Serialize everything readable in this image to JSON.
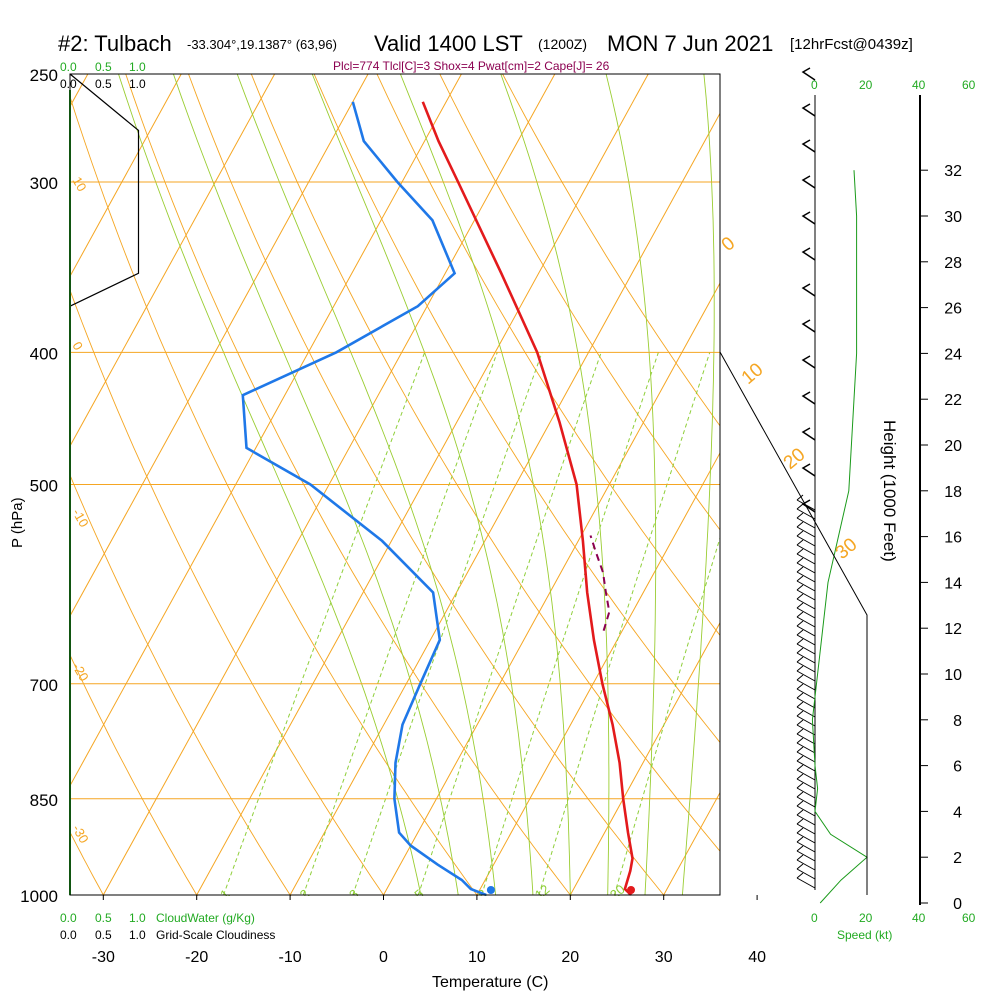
{
  "header": {
    "title_main": "#2: Tulbach",
    "coords": "-33.304°,19.1387° (63,96)",
    "valid": "Valid 1400 LST",
    "zulu": "(1200Z)",
    "date": "MON 7 Jun 2021",
    "forecast": "[12hrFcst@0439z]",
    "indices": "Plcl=774 Tlcl[C]=3 Shox=4 Pwat[cm]=2 Cape[J]= 26"
  },
  "colors": {
    "isotherm": "#f5a623",
    "dry_adiabat": "#e8b800",
    "moist_adiabat": "#9acd32",
    "mixing_ratio": "#8fcf3a",
    "temperature": "#e31a1c",
    "dewpoint": "#1f78e8",
    "parcel": "#8b0050",
    "green_label": "#22aa22",
    "cloud_line": "#000000",
    "height_line": "#1a9a1a"
  },
  "labels": {
    "xlabel": "Temperature (C)",
    "ylabel": "P (hPa)",
    "height_label": "Height (1000 Feet)",
    "cloudwater_label": "CloudWater (g/Kg)",
    "cloudiness_label": "Grid-Scale Cloudiness",
    "speed_label": "Speed (kt)",
    "top_scale_green": [
      "0.0",
      "0.5",
      "1.0"
    ],
    "top_scale_black": [
      "0.0",
      "0.5",
      "1.0"
    ],
    "bottom_scale_green": [
      "0.0",
      "0.5",
      "1.0"
    ],
    "bottom_scale_black": [
      "0.0",
      "0.5",
      "1.0"
    ],
    "speed_ticks": [
      "0",
      "20",
      "40",
      "60"
    ]
  },
  "chart_data": {
    "type": "line",
    "title": "#2: Tulbach",
    "xlabel": "Temperature (C)",
    "ylabel": "P (hPa)",
    "xlim": [
      -34,
      36
    ],
    "plim": [
      1000,
      250
    ],
    "log_pressure": true,
    "x_ticks": [
      -30,
      -20,
      -10,
      0,
      10,
      20,
      30,
      40
    ],
    "p_ticks": [
      250,
      300,
      400,
      500,
      700,
      850,
      1000
    ],
    "isobar_lines": [
      300,
      400,
      500,
      700,
      850
    ],
    "dry_adiabat_labels": [
      "10",
      "0",
      "-10",
      "-20",
      "-30"
    ],
    "skew_labels_right": [
      "0",
      "10",
      "20",
      "30"
    ],
    "mixing_ratio_labels": [
      "1",
      "2",
      "3",
      "5",
      "8",
      "12",
      "20"
    ],
    "height_ticks": [
      0,
      2,
      4,
      6,
      8,
      10,
      12,
      14,
      16,
      18,
      20,
      22,
      24,
      26,
      28,
      30,
      32
    ],
    "series": [
      {
        "name": "Temperature",
        "points": [
          [
            1000,
            26.5
          ],
          [
            990,
            25.5
          ],
          [
            960,
            25.0
          ],
          [
            940,
            24.5
          ],
          [
            900,
            22.5
          ],
          [
            850,
            20.0
          ],
          [
            800,
            17.5
          ],
          [
            750,
            14.5
          ],
          [
            700,
            11.0
          ],
          [
            650,
            7.5
          ],
          [
            600,
            4.0
          ],
          [
            550,
            0.5
          ],
          [
            500,
            -3.5
          ],
          [
            450,
            -9.0
          ],
          [
            400,
            -15.5
          ],
          [
            350,
            -24.0
          ],
          [
            300,
            -34.0
          ],
          [
            280,
            -38.5
          ],
          [
            262,
            -42.5
          ]
        ]
      },
      {
        "name": "Dewpoint",
        "points": [
          [
            1000,
            11.0
          ],
          [
            990,
            9.0
          ],
          [
            975,
            7.5
          ],
          [
            950,
            4.0
          ],
          [
            920,
            0.0
          ],
          [
            900,
            -2.0
          ],
          [
            850,
            -4.5
          ],
          [
            800,
            -6.5
          ],
          [
            750,
            -8.0
          ],
          [
            700,
            -8.5
          ],
          [
            650,
            -9.0
          ],
          [
            600,
            -12.5
          ],
          [
            550,
            -21.0
          ],
          [
            500,
            -32.0
          ],
          [
            470,
            -41.0
          ],
          [
            430,
            -44.5
          ],
          [
            400,
            -37.0
          ],
          [
            370,
            -31.0
          ],
          [
            350,
            -29.0
          ],
          [
            320,
            -34.5
          ],
          [
            300,
            -40.5
          ],
          [
            280,
            -46.5
          ],
          [
            262,
            -50.0
          ]
        ]
      },
      {
        "name": "Parcel",
        "points": [
          [
            640,
            8.0
          ],
          [
            620,
            7.5
          ],
          [
            600,
            6.0
          ],
          [
            580,
            4.5
          ],
          [
            560,
            2.5
          ],
          [
            545,
            1.0
          ]
        ]
      },
      {
        "name": "Surface Dewpoint",
        "points": [
          [
            1000,
            11.5
          ]
        ]
      }
    ],
    "cloudiness": [
      [
        250,
        0.0
      ],
      [
        275,
        0.5
      ],
      [
        350,
        0.5
      ],
      [
        370,
        0.0
      ]
    ],
    "wind_speed_kt": [
      [
        0,
        2
      ],
      [
        1,
        10
      ],
      [
        2,
        20
      ],
      [
        3,
        6
      ],
      [
        4,
        0
      ],
      [
        5,
        1
      ],
      [
        6,
        0
      ],
      [
        8,
        -1
      ],
      [
        10,
        1
      ],
      [
        12,
        3
      ],
      [
        14,
        5
      ],
      [
        16,
        9
      ],
      [
        18,
        13
      ],
      [
        20,
        14
      ],
      [
        22,
        15
      ],
      [
        24,
        16
      ],
      [
        26,
        16
      ],
      [
        28,
        16
      ],
      [
        30,
        16
      ],
      [
        32,
        15
      ]
    ]
  }
}
